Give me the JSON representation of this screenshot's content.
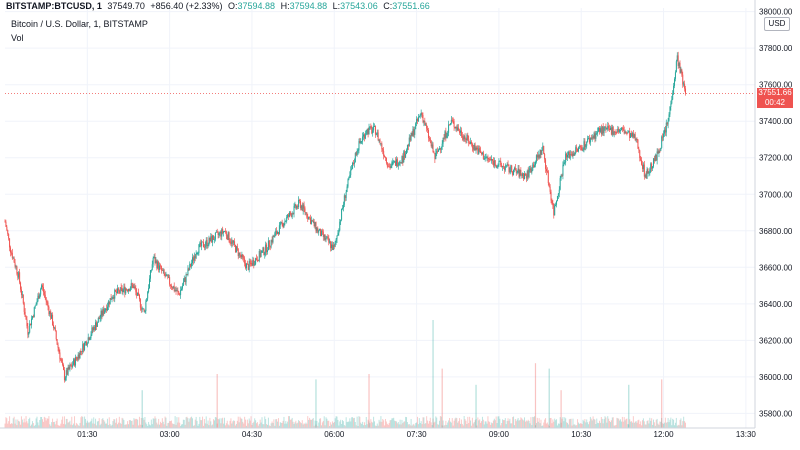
{
  "header": {
    "symbol": "BITSTAMP:BTCUSD, 1",
    "last": "37549.70",
    "change": "+856.40 (+2.33%)",
    "o_label": "O:",
    "o": "37594.88",
    "h_label": "H:",
    "h": "37594.88",
    "l_label": "L:",
    "l": "37543.06",
    "c_label": "C:",
    "c": "37551.66",
    "subtitle": "Bitcoin / U.S. Dollar, 1, BITSTAMP",
    "vol_label": "Vol"
  },
  "currency_button": "USD",
  "price_tag": {
    "price": "37551.66",
    "countdown": "00:42"
  },
  "colors": {
    "up": "#26a69a",
    "down": "#ef5350",
    "grid": "#f0f3fa",
    "axis_text": "#131722"
  },
  "chart_data": {
    "type": "candlestick",
    "x_ticks": [
      "01:30",
      "03:00",
      "04:30",
      "06:00",
      "07:30",
      "09:00",
      "10:30",
      "12:00",
      "13:30"
    ],
    "y_ticks": [
      35800,
      36000,
      36200,
      36400,
      36600,
      36800,
      37000,
      37200,
      37400,
      37600,
      37800,
      38000
    ],
    "ylim": [
      35720,
      38020
    ],
    "x_range_minutes": [
      0,
      820
    ],
    "price_waypoints_minutes": [
      0,
      6,
      15,
      25,
      40,
      52,
      65,
      78,
      95,
      118,
      140,
      152,
      162,
      175,
      190,
      210,
      240,
      265,
      285,
      305,
      322,
      342,
      360,
      372,
      385,
      395,
      405,
      420,
      435,
      455,
      470,
      488,
      505,
      525,
      545,
      570,
      588,
      600,
      612,
      628,
      650,
      675,
      690,
      700,
      712,
      725,
      735,
      744
    ],
    "price_waypoints_values": [
      36850,
      36700,
      36550,
      36250,
      36500,
      36300,
      36000,
      36100,
      36250,
      36450,
      36500,
      36350,
      36650,
      36550,
      36450,
      36700,
      36800,
      36600,
      36700,
      36850,
      36950,
      36800,
      36700,
      37000,
      37250,
      37350,
      37350,
      37150,
      37200,
      37450,
      37200,
      37400,
      37300,
      37200,
      37150,
      37100,
      37250,
      36900,
      37200,
      37250,
      37350,
      37350,
      37300,
      37100,
      37200,
      37400,
      37750,
      37550
    ],
    "current_price": 37551.66,
    "volume_spikes_minutes": [
      150,
      232,
      340,
      398,
      468,
      478,
      515,
      580,
      595,
      608,
      682,
      718
    ],
    "volume_spikes_heights": [
      0.35,
      0.5,
      0.45,
      0.5,
      1.0,
      0.55,
      0.4,
      0.6,
      0.55,
      0.35,
      0.4,
      0.45
    ]
  }
}
